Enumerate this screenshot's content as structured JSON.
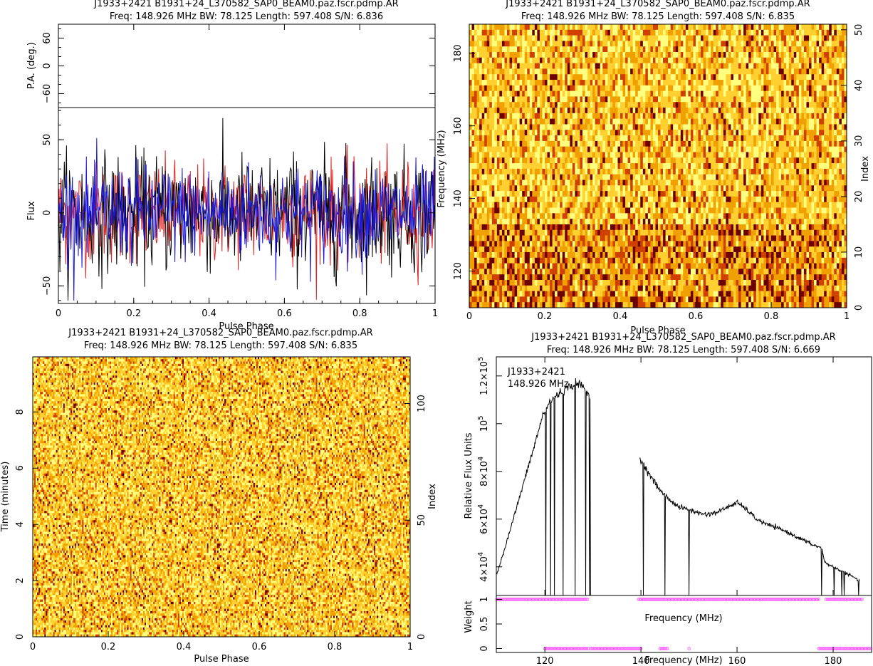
{
  "chart_data": [
    {
      "type": "line",
      "panel": "top-left",
      "title": "J1933+2421  B1931+24_L370582_SAP0_BEAM0.paz.fscr.pdmp.AR",
      "subtitle": "Freq: 148.926 MHz BW: 78.125 Length: 597.408 S/N: 6.836",
      "pa_ylabel": "P.A. (deg.)",
      "pa_ylim": [
        -90,
        90
      ],
      "pa_yticks": [
        "60",
        "0",
        "−60"
      ],
      "flux_ylabel": "Flux",
      "flux_ylim": [
        -62,
        72
      ],
      "flux_yticks": [
        "50",
        "0",
        "−50"
      ],
      "xlabel": "Pulse Phase",
      "xlim": [
        0,
        1
      ],
      "xticks": [
        "0",
        "0.2",
        "0.4",
        "0.6",
        "0.8",
        "1"
      ],
      "series": [],
      "colors": {
        "I": "#000000",
        "L": "#e02020",
        "V": "#1a1ae0"
      },
      "noise_sigma": 18
    },
    {
      "type": "heatmap",
      "panel": "top-right",
      "title": "J1933+2421  B1931+24_L370582_SAP0_BEAM0.paz.fscr.pdmp.AR",
      "subtitle": "Freq: 148.926 MHz BW: 78.125 Length: 597.408 S/N: 6.835",
      "xlabel": "Pulse Phase",
      "ylabel": "Frequency (MHz)",
      "y2label": "Index",
      "xlim": [
        0,
        1
      ],
      "ylim": [
        109.9,
        188.0
      ],
      "y2lim": [
        0,
        51
      ],
      "xticks": [
        "0",
        "0.2",
        "0.4",
        "0.6",
        "0.8",
        "1"
      ],
      "yticks": [
        "120",
        "140",
        "160",
        "180"
      ],
      "y2ticks": [
        "0",
        "10",
        "20",
        "30",
        "40",
        "50"
      ],
      "rows": 51,
      "colormap": [
        "#ffff80",
        "#ffd030",
        "#f0a000",
        "#d04000",
        "#6a0000"
      ]
    },
    {
      "type": "heatmap",
      "panel": "bottom-left",
      "title": "J1933+2421  B1931+24_L370582_SAP0_BEAM0.paz.fscr.pdmp.AR",
      "subtitle": "Freq: 148.926 MHz BW: 78.125 Length: 597.408 S/N: 6.835",
      "xlabel": "Pulse Phase",
      "ylabel": "Time (minutes)",
      "y2label": "Index",
      "xlim": [
        0,
        1
      ],
      "ylim": [
        0,
        9.96
      ],
      "y2lim": [
        0,
        120
      ],
      "xticks": [
        "0",
        "0.2",
        "0.4",
        "0.6",
        "0.8",
        "1"
      ],
      "yticks": [
        "0",
        "2",
        "4",
        "6",
        "8"
      ],
      "y2ticks": [
        "0",
        "50",
        "100"
      ],
      "rows": 120,
      "colormap": [
        "#ffff80",
        "#ffd030",
        "#f0a000",
        "#d04000",
        "#6a0000"
      ]
    },
    {
      "type": "line",
      "panel": "bottom-right",
      "title": "J1933+2421  B1931+24_L370582_SAP0_BEAM0.paz.fscr.pdmp.AR",
      "subtitle": "Freq: 148.926 MHz BW: 78.125 Length: 597.408 S/N: 6.669",
      "annotation_source": "J1933+2421",
      "annotation_freq": "148.926 MHz",
      "ylabel": "Relative Flux Units",
      "xlabel": "Frequency (MHz)",
      "weight_xlabel": "Frequency (MHz)",
      "weight_ylabel": "Weight",
      "xlim": [
        109.9,
        188.0
      ],
      "ylim": [
        28000,
        128000
      ],
      "xticks": [
        "120",
        "140",
        "160",
        "180"
      ],
      "yticks": [
        {
          "mant": "4×10",
          "exp": "4",
          "v": 40000
        },
        {
          "mant": "6×10",
          "exp": "4",
          "v": 60000
        },
        {
          "mant": "8×10",
          "exp": "4",
          "v": 80000
        },
        {
          "mant": "10",
          "exp": "5",
          "v": 100000
        },
        {
          "mant": "1.2×10",
          "exp": "5",
          "v": 120000
        }
      ],
      "weight_ylim": [
        -0.08,
        1.08
      ],
      "weight_yticks": [
        "0",
        "0.5",
        "1"
      ],
      "bandpass": {
        "x": [
          110.0,
          112.0,
          114.0,
          116.0,
          118.0,
          119.5,
          121.0,
          122.5,
          124.0,
          125.5,
          127.0,
          128.5,
          129.3,
          139.7,
          140.5,
          142.0,
          144.0,
          146.0,
          148.0,
          150.0,
          152.0,
          154.0,
          156.0,
          158.0,
          160.0,
          162.0,
          164.0,
          166.0,
          168.0,
          170.0,
          172.0,
          174.0,
          176.0,
          177.6,
          178.2,
          180.0,
          182.0,
          184.0,
          185.5
        ],
        "y": [
          37000,
          50000,
          64000,
          78000,
          92000,
          103000,
          109000,
          112000,
          114000,
          116000,
          117000,
          114000,
          111000,
          86000,
          83000,
          78000,
          72000,
          68000,
          65000,
          64000,
          62500,
          62000,
          63000,
          65000,
          67000,
          64000,
          60000,
          58000,
          56500,
          55000,
          53000,
          51000,
          49000,
          48000,
          42000,
          40000,
          38000,
          36000,
          34000
        ]
      },
      "zapped_channels": [
        120.2,
        121.2,
        122.0,
        123.8,
        126.3,
        128.5,
        129.3,
        140.5,
        145.0,
        150.0,
        177.6,
        180.2,
        181.8,
        182.3,
        185.3
      ],
      "weights_one_ranges": [
        [
          110.0,
          129.0
        ],
        [
          139.5,
          177.0
        ],
        [
          178.5,
          186.0
        ]
      ],
      "weights_zero_ranges": [
        [
          120.0,
          129.0
        ],
        [
          129.5,
          140.0
        ],
        [
          144.0,
          145.5
        ],
        [
          150.0,
          150.0
        ],
        [
          177.0,
          188.0
        ]
      ],
      "line_color": "#000000",
      "weight_color": "#ff40ff"
    }
  ]
}
